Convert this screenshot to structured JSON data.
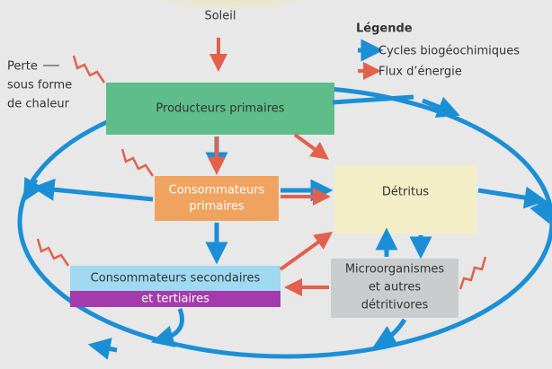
{
  "sun": {
    "label": "Soleil"
  },
  "legend": {
    "title": "Légende",
    "items": [
      "Cycles biogéochimiques",
      "Flux d’énergie"
    ]
  },
  "heat_loss": {
    "lines": [
      "Perte",
      "sous forme",
      "de chaleur"
    ]
  },
  "nodes": [
    {
      "lines": [
        "Producteurs primaires"
      ]
    },
    {
      "lines": [
        "Consommateurs",
        "primaires"
      ]
    },
    {
      "lines": [
        "Détritus"
      ]
    },
    {
      "lines": [
        "Consommateurs secondaires",
        "et tertiaires"
      ]
    },
    {
      "lines": [
        "Microorganismes",
        "et autres",
        "détritivores"
      ]
    }
  ]
}
